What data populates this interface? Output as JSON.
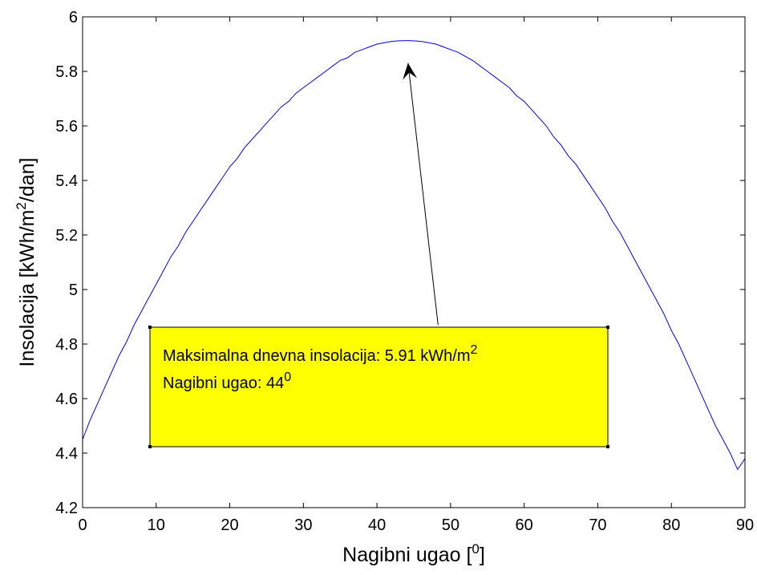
{
  "chart_data": {
    "type": "line",
    "title": "",
    "xlabel": "Nagibni ugao [",
    "xlabel_sup": "0",
    "xlabel_suffix": "]",
    "ylabel": "Insolacija [kWh/m",
    "ylabel_sup": "2",
    "ylabel_suffix": "/dan]",
    "xlim": [
      0,
      90
    ],
    "ylim": [
      4.2,
      6
    ],
    "xticks": [
      0,
      10,
      20,
      30,
      40,
      50,
      60,
      70,
      80,
      90
    ],
    "xtick_labels": [
      "0",
      "10",
      "20",
      "30",
      "40",
      "50",
      "60",
      "70",
      "80",
      "90"
    ],
    "yticks": [
      4.2,
      4.4,
      4.6,
      4.8,
      5.0,
      5.2,
      5.4,
      5.6,
      5.8,
      6.0
    ],
    "ytick_labels": [
      "4.2",
      "4.4",
      "4.6",
      "4.8",
      "5",
      "5.2",
      "5.4",
      "5.6",
      "5.8",
      "6"
    ],
    "grid": false,
    "series": [
      {
        "color": "#0000ff",
        "x": [
          0,
          1,
          2,
          3,
          4,
          5,
          6,
          7,
          8,
          9,
          10,
          11,
          12,
          13,
          14,
          15,
          16,
          17,
          18,
          19,
          20,
          21,
          22,
          23,
          24,
          25,
          26,
          27,
          28,
          29,
          30,
          31,
          32,
          33,
          34,
          35,
          36,
          37,
          38,
          39,
          40,
          41,
          42,
          43,
          44,
          45,
          46,
          47,
          48,
          49,
          50,
          51,
          52,
          53,
          54,
          55,
          56,
          57,
          58,
          59,
          60,
          61,
          62,
          63,
          64,
          65,
          66,
          67,
          68,
          69,
          70,
          71,
          72,
          73,
          74,
          75,
          76,
          77,
          78,
          79,
          80,
          81,
          82,
          83,
          84,
          85,
          86,
          87,
          88,
          89,
          90
        ],
        "y": [
          4.45,
          4.52,
          4.58,
          4.64,
          4.7,
          4.76,
          4.81,
          4.87,
          4.92,
          4.97,
          5.02,
          5.07,
          5.12,
          5.16,
          5.21,
          5.25,
          5.29,
          5.33,
          5.37,
          5.41,
          5.45,
          5.48,
          5.52,
          5.55,
          5.58,
          5.61,
          5.64,
          5.67,
          5.69,
          5.72,
          5.74,
          5.76,
          5.78,
          5.8,
          5.82,
          5.84,
          5.85,
          5.87,
          5.88,
          5.89,
          5.9,
          5.905,
          5.91,
          5.912,
          5.913,
          5.912,
          5.91,
          5.905,
          5.9,
          5.89,
          5.88,
          5.87,
          5.855,
          5.84,
          5.82,
          5.8,
          5.78,
          5.76,
          5.74,
          5.71,
          5.69,
          5.66,
          5.63,
          5.6,
          5.56,
          5.53,
          5.49,
          5.46,
          5.42,
          5.38,
          5.34,
          5.3,
          5.25,
          5.21,
          5.16,
          5.11,
          5.06,
          5.01,
          4.96,
          4.91,
          4.85,
          4.8,
          4.74,
          4.68,
          4.62,
          4.56,
          4.5,
          4.45,
          4.4,
          4.34,
          4.38
        ]
      }
    ],
    "annotation": {
      "line1": "Maksimalna dnevna insolacija: 5.91 kWh/m",
      "line1_sup": "2",
      "line2": "Nagibni ugao: 44",
      "line2_sup": "0",
      "box_color": "#ffff00",
      "arrow_target": [
        44,
        5.91
      ],
      "arrow_tail": [
        48.3,
        4.87
      ]
    }
  }
}
